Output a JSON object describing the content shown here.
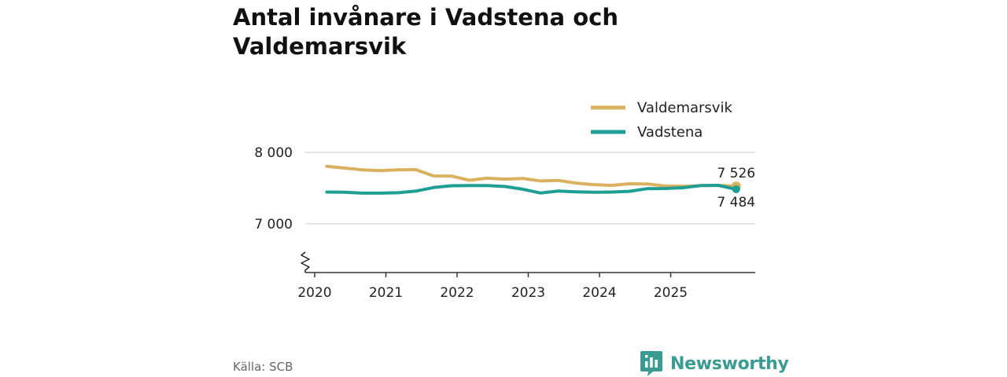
{
  "title": "Antal invånare i Vadstena och Valdemarsvik",
  "source": "Källa: SCB",
  "brand": {
    "name": "Newsworthy",
    "icon": "newsworthy-logo-icon"
  },
  "colors": {
    "valdemarsvik": "#d9b15f",
    "vadstena": "#1f9e95",
    "grid": "#dddddd",
    "axis": "#333333"
  },
  "chart_data": {
    "type": "line",
    "title": "Antal invånare i Vadstena och Valdemarsvik",
    "xlabel": "",
    "ylabel": "",
    "xlim": [
      2020,
      2026.2
    ],
    "ylim": [
      6400,
      8150
    ],
    "y_axis_break": true,
    "x_ticks": [
      2020,
      2021,
      2022,
      2023,
      2024,
      2025
    ],
    "x_tick_labels": [
      "2020",
      "2021",
      "2022",
      "2023",
      "2024",
      "2025"
    ],
    "y_ticks": [
      7000,
      8000
    ],
    "y_tick_labels": [
      "7 000",
      "8 000"
    ],
    "legend_position": "top-right",
    "series": [
      {
        "name": "Valdemarsvik",
        "color": "#d9b15f",
        "x": [
          2020.17,
          2020.42,
          2020.67,
          2020.92,
          2021.17,
          2021.42,
          2021.67,
          2021.92,
          2022.17,
          2022.42,
          2022.67,
          2022.92,
          2023.17,
          2023.42,
          2023.67,
          2023.92,
          2024.17,
          2024.42,
          2024.67,
          2024.92,
          2025.17,
          2025.42,
          2025.67,
          2025.92
        ],
        "values": [
          7805,
          7780,
          7755,
          7745,
          7755,
          7758,
          7670,
          7668,
          7610,
          7638,
          7625,
          7635,
          7600,
          7608,
          7570,
          7548,
          7538,
          7560,
          7558,
          7530,
          7525,
          7535,
          7538,
          7526
        ],
        "end_label": "7 526"
      },
      {
        "name": "Vadstena",
        "color": "#1f9e95",
        "x": [
          2020.17,
          2020.42,
          2020.67,
          2020.92,
          2021.17,
          2021.42,
          2021.67,
          2021.92,
          2022.17,
          2022.42,
          2022.67,
          2022.92,
          2023.17,
          2023.42,
          2023.67,
          2023.92,
          2024.17,
          2024.42,
          2024.67,
          2024.92,
          2025.17,
          2025.42,
          2025.67,
          2025.92
        ],
        "values": [
          7445,
          7443,
          7430,
          7430,
          7435,
          7458,
          7508,
          7533,
          7535,
          7535,
          7523,
          7485,
          7432,
          7458,
          7448,
          7442,
          7445,
          7455,
          7492,
          7495,
          7505,
          7535,
          7538,
          7484
        ],
        "end_label": "7 484"
      }
    ]
  }
}
